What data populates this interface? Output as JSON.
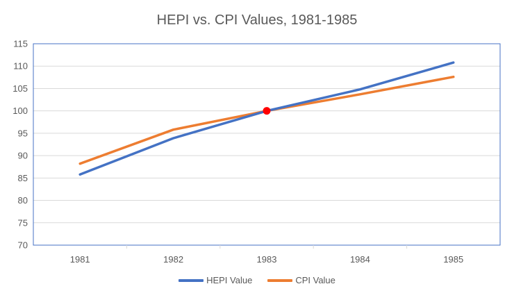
{
  "chart_data": {
    "type": "line",
    "title": "HEPI vs. CPI Values, 1981-1985",
    "xlabel": "",
    "ylabel": "",
    "categories": [
      "1981",
      "1982",
      "1983",
      "1984",
      "1985"
    ],
    "ylim": [
      70,
      115
    ],
    "yticks": [
      70,
      75,
      80,
      85,
      90,
      95,
      100,
      105,
      110,
      115
    ],
    "grid": true,
    "legend_position": "bottom",
    "series": [
      {
        "name": "HEPI Value",
        "color": "#4472C4",
        "values": [
          85.8,
          93.9,
          100.0,
          104.8,
          110.8
        ]
      },
      {
        "name": "CPI Value",
        "color": "#ED7D31",
        "values": [
          88.2,
          95.8,
          100.0,
          103.7,
          107.6
        ]
      }
    ],
    "annotations": [
      {
        "type": "marker",
        "category": "1983",
        "value": 100.0,
        "color": "#FF0000"
      }
    ],
    "colors": {
      "gridline": "#d9d9d9",
      "plot_border": "#4472C4",
      "text": "#595959"
    }
  }
}
